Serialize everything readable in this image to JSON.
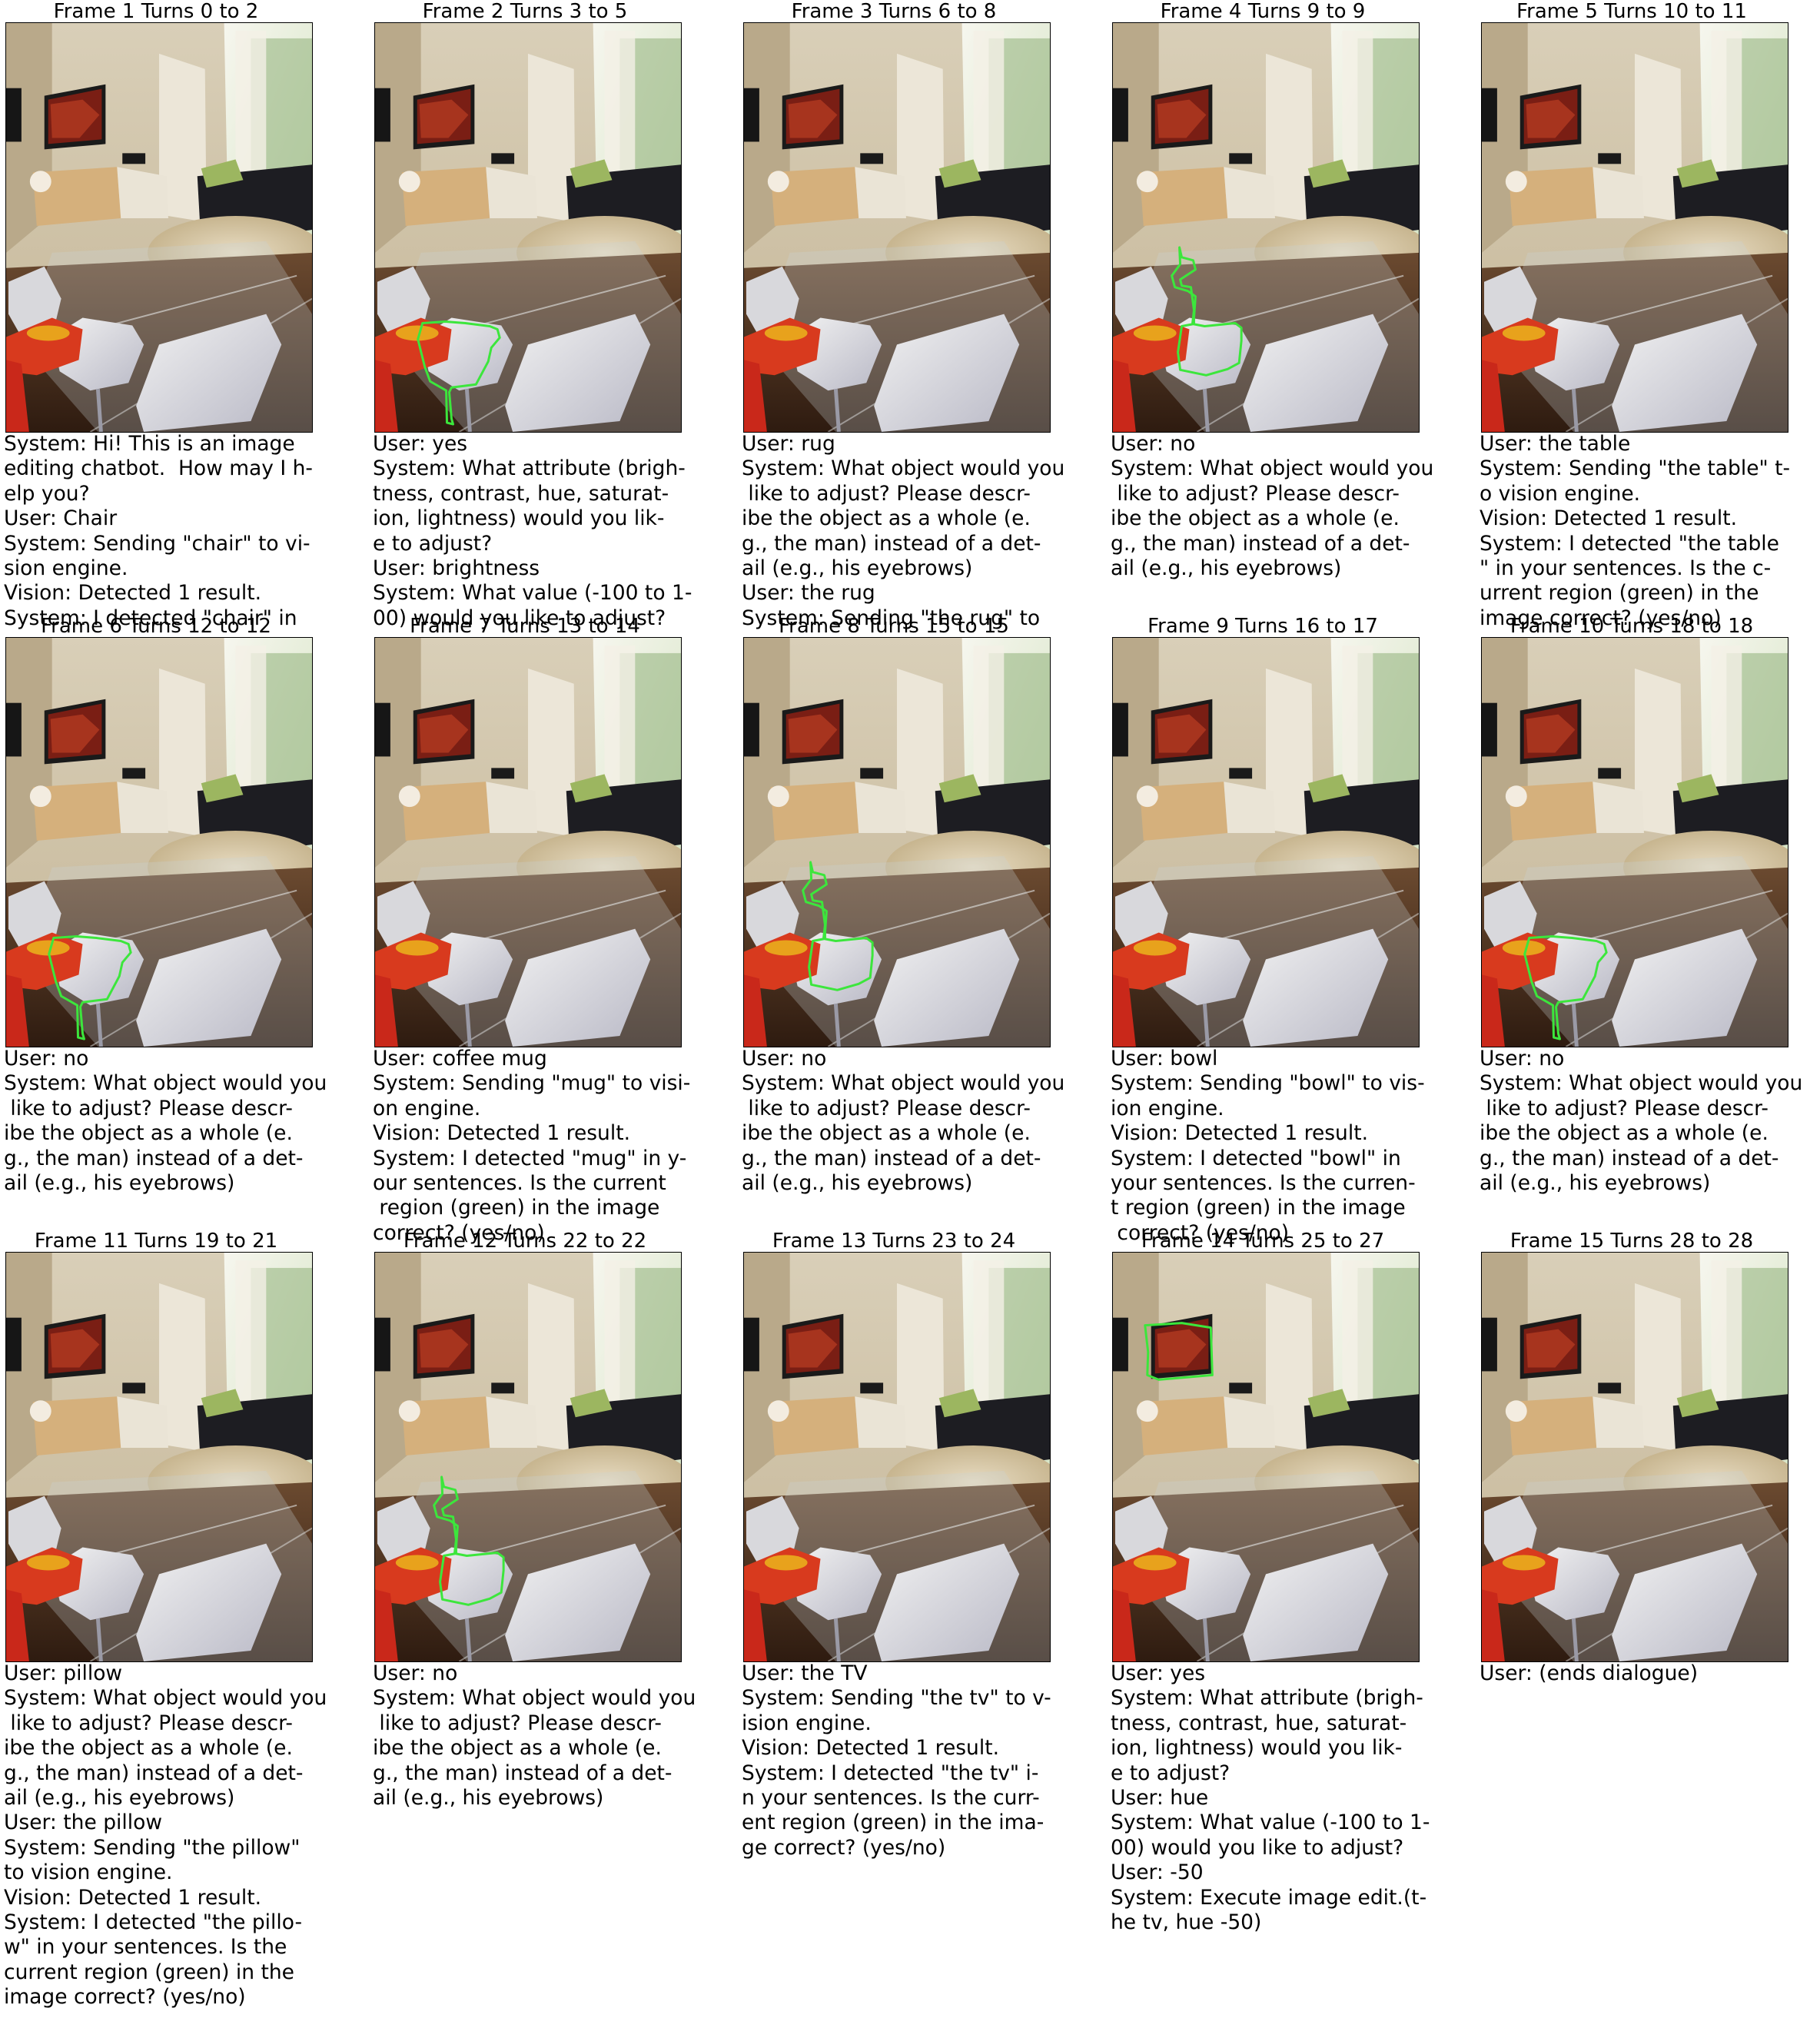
{
  "colors": {
    "mask_outline": "#3ce63c"
  },
  "frames": [
    {
      "title": "Frame 1 Turns 0 to 2",
      "mask": "none",
      "dialogue": "System: Hi! This is an image\nediting chatbot.  How may I h-\nelp you?\nUser: Chair\nSystem: Sending \"chair\" to vi-\nsion engine.\nVision: Detected 1 result.\nSystem: I detected \"chair\" in"
    },
    {
      "title": "Frame 2 Turns 3 to 5",
      "mask": "chair",
      "dialogue": "User: yes\nSystem: What attribute (brigh-\ntness, contrast, hue, saturat-\nion, lightness) would you lik-\ne to adjust?\nUser: brightness\nSystem: What value (-100 to 1-\n00) would you like to adjust?"
    },
    {
      "title": "Frame 3 Turns 6 to 8",
      "mask": "none",
      "dialogue": "User: rug\nSystem: What object would you\n like to adjust? Please descr-\nibe the object as a whole (e.\ng., the man) instead of a det-\nail (e.g., his eyebrows)\nUser: the rug\nSystem: Sending \"the rug\" to"
    },
    {
      "title": "Frame 4 Turns 9 to 9",
      "mask": "rug",
      "dialogue": "User: no\nSystem: What object would you\n like to adjust? Please descr-\nibe the object as a whole (e.\ng., the man) instead of a det-\nail (e.g., his eyebrows)"
    },
    {
      "title": "Frame 5 Turns 10 to 11",
      "mask": "none",
      "dialogue": "User: the table\nSystem: Sending \"the table\" t-\no vision engine.\nVision: Detected 1 result.\nSystem: I detected \"the table\n\" in your sentences. Is the c-\nurrent region (green) in the\nimage correct? (yes/no)"
    },
    {
      "title": "Frame 6 Turns 12 to 12",
      "mask": "chair",
      "dialogue": "User: no\nSystem: What object would you\n like to adjust? Please descr-\nibe the object as a whole (e.\ng., the man) instead of a det-\nail (e.g., his eyebrows)"
    },
    {
      "title": "Frame 7 Turns 13 to 14",
      "mask": "none",
      "dialogue": "User: coffee mug\nSystem: Sending \"mug\" to visi-\non engine.\nVision: Detected 1 result.\nSystem: I detected \"mug\" in y-\nour sentences. Is the current\n region (green) in the image\ncorrect? (yes/no)"
    },
    {
      "title": "Frame 8 Turns 15 to 15",
      "mask": "rug",
      "dialogue": "User: no\nSystem: What object would you\n like to adjust? Please descr-\nibe the object as a whole (e.\ng., the man) instead of a det-\nail (e.g., his eyebrows)"
    },
    {
      "title": "Frame 9 Turns 16 to 17",
      "mask": "none",
      "dialogue": "User: bowl\nSystem: Sending \"bowl\" to vis-\nion engine.\nVision: Detected 1 result.\nSystem: I detected \"bowl\" in\nyour sentences. Is the curren-\nt region (green) in the image\n correct? (yes/no)"
    },
    {
      "title": "Frame 10 Turns 18 to 18",
      "mask": "chair",
      "dialogue": "User: no\nSystem: What object would you\n like to adjust? Please descr-\nibe the object as a whole (e.\ng., the man) instead of a det-\nail (e.g., his eyebrows)"
    },
    {
      "title": "Frame 11 Turns 19 to 21",
      "mask": "none",
      "dialogue": "User: pillow\nSystem: What object would you\n like to adjust? Please descr-\nibe the object as a whole (e.\ng., the man) instead of a det-\nail (e.g., his eyebrows)\nUser: the pillow\nSystem: Sending \"the pillow\"\nto vision engine.\nVision: Detected 1 result.\nSystem: I detected \"the pillo-\nw\" in your sentences. Is the\ncurrent region (green) in the\nimage correct? (yes/no)"
    },
    {
      "title": "Frame 12 Turns 22 to 22",
      "mask": "rug",
      "dialogue": "User: no\nSystem: What object would you\n like to adjust? Please descr-\nibe the object as a whole (e.\ng., the man) instead of a det-\nail (e.g., his eyebrows)"
    },
    {
      "title": "Frame 13 Turns 23 to 24",
      "mask": "none",
      "dialogue": "User: the TV\nSystem: Sending \"the tv\" to v-\nision engine.\nVision: Detected 1 result.\nSystem: I detected \"the tv\" i-\nn your sentences. Is the curr-\nent region (green) in the ima-\nge correct? (yes/no)"
    },
    {
      "title": "Frame 14 Turns 25 to 27",
      "mask": "tv",
      "dialogue": "User: yes\nSystem: What attribute (brigh-\ntness, contrast, hue, saturat-\nion, lightness) would you lik-\ne to adjust?\nUser: hue\nSystem: What value (-100 to 1-\n00) would you like to adjust?\nUser: -50\nSystem: Execute image edit.(t-\nhe tv, hue -50)"
    },
    {
      "title": "Frame 15 Turns 28 to 28",
      "mask": "none",
      "dialogue": "User: (ends dialogue)"
    }
  ]
}
